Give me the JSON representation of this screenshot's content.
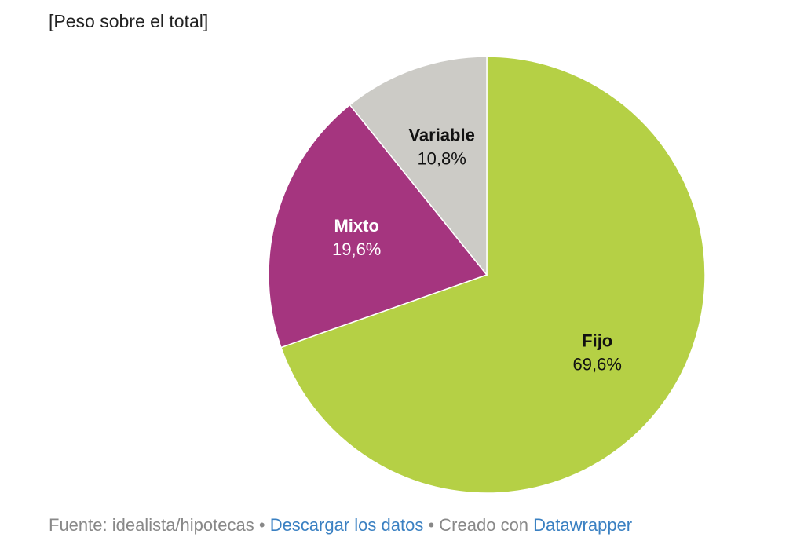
{
  "chart_data": {
    "type": "pie",
    "subtitle": "[Peso sobre el total]",
    "categories": [
      "Fijo",
      "Mixto",
      "Variable"
    ],
    "values": [
      69.6,
      19.6,
      10.8
    ],
    "value_labels": [
      "69,6%",
      "19,6%",
      "10,8%"
    ],
    "colors": [
      "#b5d045",
      "#a5357f",
      "#cccbc6"
    ],
    "footer": {
      "source": "Fuente: idealista/hipotecas",
      "separator": "•",
      "download": "Descargar los datos",
      "credit": "Creado con",
      "credit_link": "Datawrapper"
    }
  }
}
